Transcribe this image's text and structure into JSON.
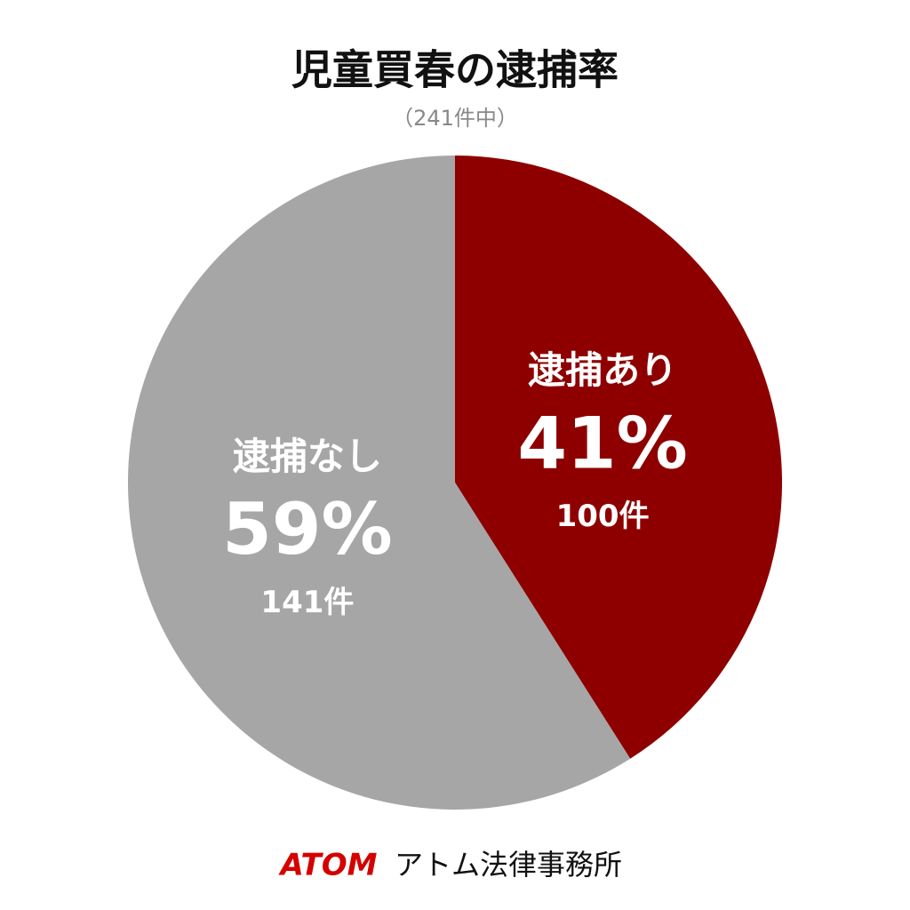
{
  "chart_data": {
    "type": "pie",
    "title": "児童買春の逮捕率",
    "subtitle": "（241件中）",
    "categories": [
      "逮捕あり",
      "逮捕なし"
    ],
    "values": [
      41,
      59
    ],
    "value_labels": [
      "41%",
      "59%"
    ],
    "counts": [
      100,
      141
    ],
    "count_labels": [
      "100件",
      "141件"
    ],
    "colors": [
      "#8e0000",
      "#a6a6a6"
    ],
    "footer": {
      "brand": "ATOM",
      "name": "アトム法律事務所"
    }
  }
}
